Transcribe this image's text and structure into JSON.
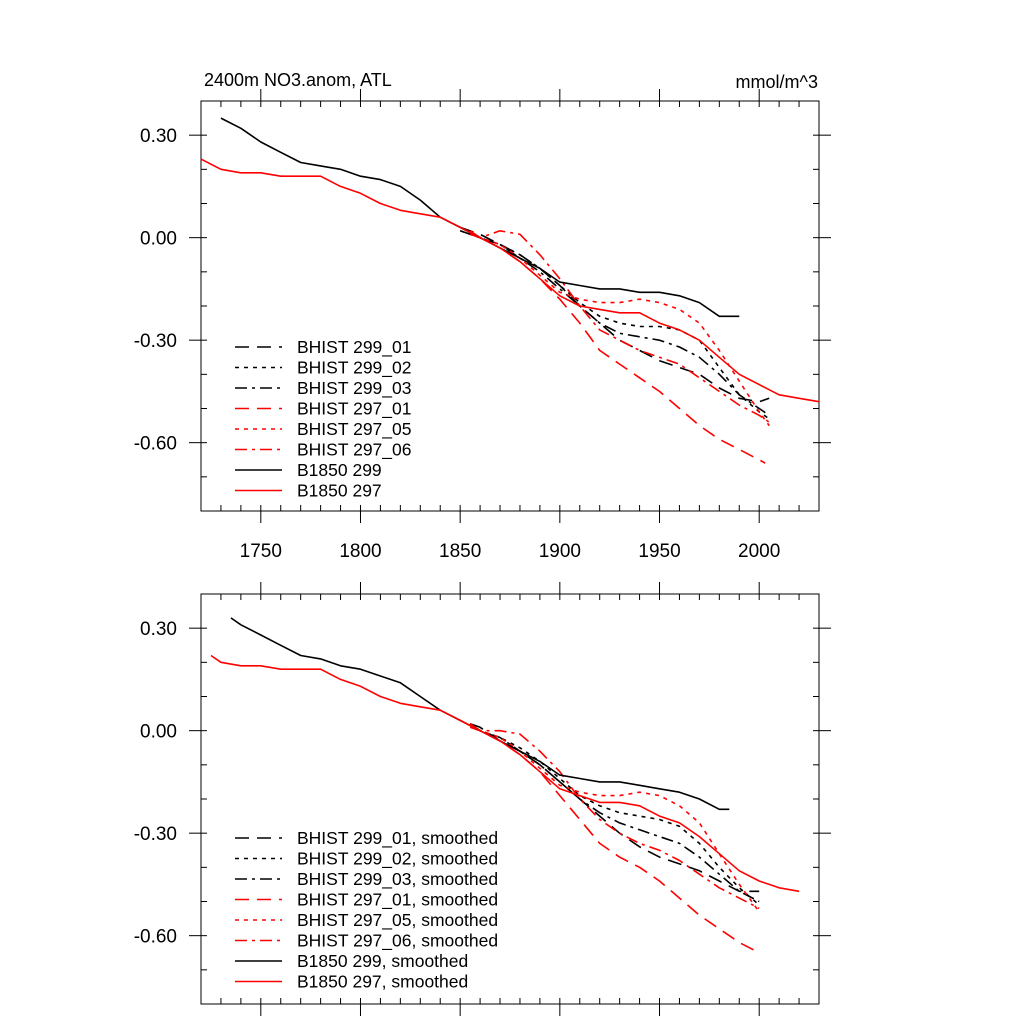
{
  "chart_data": [
    {
      "type": "line",
      "title": "2400m NO3.anom, ATL",
      "units": "mmol/m^3",
      "xlabel": "",
      "ylabel": "",
      "xlim": [
        1720,
        2030
      ],
      "ylim": [
        -0.8,
        0.4
      ],
      "xticks": [
        1750,
        1800,
        1850,
        1900,
        1950,
        2000
      ],
      "xtick_labels": [
        "1750",
        "1800",
        "1850",
        "1900",
        "1950",
        "2000"
      ],
      "yticks": [
        0.3,
        0.0,
        -0.3,
        -0.6
      ],
      "ytick_labels": [
        "0.30",
        "0.00",
        "-0.30",
        "-0.60"
      ],
      "grid": false,
      "legend_position": "bottom-left",
      "series": [
        {
          "name": "BHIST 299_01",
          "color": "#000000",
          "dash": "dash",
          "x": [
            1850,
            1860,
            1870,
            1880,
            1890,
            1900,
            1910,
            1920,
            1930,
            1940,
            1950,
            1960,
            1970,
            1980,
            1990,
            2000,
            2005
          ],
          "y": [
            0.03,
            0.01,
            -0.02,
            -0.05,
            -0.09,
            -0.14,
            -0.2,
            -0.25,
            -0.3,
            -0.33,
            -0.36,
            -0.38,
            -0.4,
            -0.44,
            -0.47,
            -0.48,
            -0.47
          ]
        },
        {
          "name": "BHIST 299_02",
          "color": "#000000",
          "dash": "dot",
          "x": [
            1850,
            1860,
            1870,
            1880,
            1890,
            1900,
            1910,
            1920,
            1930,
            1940,
            1950,
            1960,
            1970,
            1980,
            1990,
            2000,
            2005
          ],
          "y": [
            0.02,
            0.0,
            -0.02,
            -0.05,
            -0.09,
            -0.14,
            -0.19,
            -0.23,
            -0.25,
            -0.26,
            -0.26,
            -0.27,
            -0.3,
            -0.38,
            -0.46,
            -0.51,
            -0.53
          ]
        },
        {
          "name": "BHIST 299_03",
          "color": "#000000",
          "dash": "dashdot",
          "x": [
            1850,
            1860,
            1870,
            1880,
            1890,
            1900,
            1910,
            1920,
            1930,
            1940,
            1950,
            1960,
            1970,
            1980,
            1990,
            2000,
            2005
          ],
          "y": [
            0.02,
            0.0,
            -0.02,
            -0.06,
            -0.1,
            -0.15,
            -0.2,
            -0.25,
            -0.28,
            -0.29,
            -0.3,
            -0.32,
            -0.35,
            -0.4,
            -0.46,
            -0.5,
            -0.52
          ]
        },
        {
          "name": "BHIST 297_01",
          "color": "#ff0000",
          "dash": "dash",
          "x": [
            1855,
            1860,
            1870,
            1880,
            1890,
            1900,
            1910,
            1920,
            1930,
            1940,
            1950,
            1960,
            1970,
            1980,
            1990,
            2000,
            2003
          ],
          "y": [
            0.02,
            0.0,
            -0.03,
            -0.07,
            -0.12,
            -0.18,
            -0.25,
            -0.33,
            -0.37,
            -0.41,
            -0.45,
            -0.5,
            -0.55,
            -0.59,
            -0.62,
            -0.65,
            -0.66
          ]
        },
        {
          "name": "BHIST 297_05",
          "color": "#ff0000",
          "dash": "dot",
          "x": [
            1855,
            1860,
            1870,
            1880,
            1890,
            1900,
            1910,
            1920,
            1930,
            1940,
            1950,
            1960,
            1970,
            1980,
            1990,
            2000,
            2005
          ],
          "y": [
            0.02,
            0.0,
            -0.02,
            -0.06,
            -0.11,
            -0.16,
            -0.18,
            -0.19,
            -0.19,
            -0.18,
            -0.19,
            -0.21,
            -0.25,
            -0.33,
            -0.42,
            -0.51,
            -0.55
          ]
        },
        {
          "name": "BHIST 297_06",
          "color": "#ff0000",
          "dash": "dashdot",
          "x": [
            1855,
            1860,
            1870,
            1880,
            1890,
            1900,
            1910,
            1920,
            1930,
            1940,
            1950,
            1960,
            1970,
            1980,
            1990,
            2000,
            2005
          ],
          "y": [
            0.01,
            0.0,
            0.02,
            0.01,
            -0.05,
            -0.12,
            -0.2,
            -0.27,
            -0.3,
            -0.33,
            -0.35,
            -0.37,
            -0.41,
            -0.45,
            -0.49,
            -0.52,
            -0.54
          ]
        },
        {
          "name": "B1850 299",
          "color": "#000000",
          "dash": "solid",
          "x": [
            1730,
            1740,
            1750,
            1760,
            1770,
            1780,
            1790,
            1800,
            1810,
            1820,
            1830,
            1840,
            1850,
            1860,
            1870,
            1880,
            1890,
            1900,
            1910,
            1920,
            1930,
            1940,
            1950,
            1960,
            1970,
            1980,
            1990
          ],
          "y": [
            0.35,
            0.32,
            0.28,
            0.25,
            0.22,
            0.21,
            0.2,
            0.18,
            0.17,
            0.15,
            0.11,
            0.06,
            0.03,
            0.0,
            -0.03,
            -0.06,
            -0.09,
            -0.13,
            -0.14,
            -0.15,
            -0.15,
            -0.16,
            -0.16,
            -0.17,
            -0.19,
            -0.23,
            -0.23
          ]
        },
        {
          "name": "B1850 297",
          "color": "#ff0000",
          "dash": "solid",
          "x": [
            1720,
            1730,
            1740,
            1750,
            1760,
            1770,
            1780,
            1790,
            1800,
            1810,
            1820,
            1830,
            1840,
            1850,
            1860,
            1870,
            1880,
            1890,
            1900,
            1910,
            1920,
            1930,
            1940,
            1950,
            1960,
            1970,
            1980,
            1990,
            2000,
            2010,
            2020,
            2030
          ],
          "y": [
            0.23,
            0.2,
            0.19,
            0.19,
            0.18,
            0.18,
            0.18,
            0.15,
            0.13,
            0.1,
            0.08,
            0.07,
            0.06,
            0.03,
            0.0,
            -0.03,
            -0.07,
            -0.12,
            -0.17,
            -0.2,
            -0.21,
            -0.22,
            -0.22,
            -0.25,
            -0.27,
            -0.3,
            -0.35,
            -0.4,
            -0.43,
            -0.46,
            -0.47,
            -0.48
          ]
        }
      ]
    },
    {
      "type": "line",
      "title": "",
      "units": "",
      "xlabel": "",
      "ylabel": "",
      "xlim": [
        1720,
        2030
      ],
      "ylim": [
        -0.8,
        0.4
      ],
      "xticks": [
        1750,
        1800,
        1850,
        1900,
        1950,
        2000
      ],
      "yticks": [
        0.3,
        0.0,
        -0.3,
        -0.6
      ],
      "ytick_labels": [
        "0.30",
        "0.00",
        "-0.30",
        "-0.60"
      ],
      "grid": false,
      "legend_position": "bottom-left",
      "series": [
        {
          "name": "BHIST 299_01, smoothed",
          "color": "#000000",
          "dash": "dash",
          "x": [
            1855,
            1860,
            1870,
            1880,
            1890,
            1900,
            1910,
            1920,
            1930,
            1940,
            1950,
            1960,
            1970,
            1980,
            1990,
            2000
          ],
          "y": [
            0.02,
            0.01,
            -0.03,
            -0.06,
            -0.1,
            -0.15,
            -0.2,
            -0.25,
            -0.3,
            -0.34,
            -0.37,
            -0.39,
            -0.41,
            -0.44,
            -0.47,
            -0.47
          ]
        },
        {
          "name": "BHIST 299_02, smoothed",
          "color": "#000000",
          "dash": "dot",
          "x": [
            1855,
            1860,
            1870,
            1880,
            1890,
            1900,
            1910,
            1920,
            1930,
            1940,
            1950,
            1960,
            1970,
            1980,
            1990,
            2000
          ],
          "y": [
            0.02,
            0.0,
            -0.02,
            -0.05,
            -0.09,
            -0.14,
            -0.19,
            -0.22,
            -0.24,
            -0.25,
            -0.26,
            -0.28,
            -0.33,
            -0.4,
            -0.46,
            -0.51
          ]
        },
        {
          "name": "BHIST 299_03, smoothed",
          "color": "#000000",
          "dash": "dashdot",
          "x": [
            1855,
            1860,
            1870,
            1880,
            1890,
            1900,
            1910,
            1920,
            1930,
            1940,
            1950,
            1960,
            1970,
            1980,
            1990,
            2000
          ],
          "y": [
            0.02,
            0.0,
            -0.02,
            -0.06,
            -0.1,
            -0.15,
            -0.2,
            -0.24,
            -0.27,
            -0.29,
            -0.31,
            -0.33,
            -0.37,
            -0.42,
            -0.47,
            -0.5
          ]
        },
        {
          "name": "BHIST 297_01, smoothed",
          "color": "#ff0000",
          "dash": "dash",
          "x": [
            1855,
            1860,
            1870,
            1880,
            1890,
            1900,
            1910,
            1920,
            1930,
            1940,
            1950,
            1960,
            1970,
            1980,
            1990,
            2000
          ],
          "y": [
            0.02,
            0.0,
            -0.03,
            -0.07,
            -0.12,
            -0.19,
            -0.26,
            -0.33,
            -0.37,
            -0.4,
            -0.44,
            -0.49,
            -0.54,
            -0.58,
            -0.62,
            -0.65
          ]
        },
        {
          "name": "BHIST 297_05, smoothed",
          "color": "#ff0000",
          "dash": "dot",
          "x": [
            1855,
            1860,
            1870,
            1880,
            1890,
            1900,
            1910,
            1920,
            1930,
            1940,
            1950,
            1960,
            1970,
            1980,
            1990,
            2000
          ],
          "y": [
            0.02,
            0.0,
            -0.02,
            -0.06,
            -0.11,
            -0.16,
            -0.18,
            -0.19,
            -0.19,
            -0.18,
            -0.19,
            -0.22,
            -0.27,
            -0.36,
            -0.45,
            -0.53
          ]
        },
        {
          "name": "BHIST 297_06, smoothed",
          "color": "#ff0000",
          "dash": "dashdot",
          "x": [
            1855,
            1860,
            1870,
            1880,
            1890,
            1900,
            1910,
            1920,
            1930,
            1940,
            1950,
            1960,
            1970,
            1980,
            1990,
            2000
          ],
          "y": [
            0.01,
            0.0,
            0.0,
            -0.01,
            -0.06,
            -0.12,
            -0.2,
            -0.26,
            -0.3,
            -0.33,
            -0.35,
            -0.38,
            -0.42,
            -0.46,
            -0.49,
            -0.52
          ]
        },
        {
          "name": "B1850 299, smoothed",
          "color": "#000000",
          "dash": "solid",
          "x": [
            1735,
            1740,
            1750,
            1760,
            1770,
            1780,
            1790,
            1800,
            1810,
            1820,
            1830,
            1840,
            1850,
            1860,
            1870,
            1880,
            1890,
            1900,
            1910,
            1920,
            1930,
            1940,
            1950,
            1960,
            1970,
            1980,
            1985
          ],
          "y": [
            0.33,
            0.31,
            0.28,
            0.25,
            0.22,
            0.21,
            0.19,
            0.18,
            0.16,
            0.14,
            0.1,
            0.06,
            0.03,
            0.0,
            -0.03,
            -0.06,
            -0.09,
            -0.13,
            -0.14,
            -0.15,
            -0.15,
            -0.16,
            -0.17,
            -0.18,
            -0.2,
            -0.23,
            -0.23
          ]
        },
        {
          "name": "B1850 297, smoothed",
          "color": "#ff0000",
          "dash": "solid",
          "x": [
            1725,
            1730,
            1740,
            1750,
            1760,
            1770,
            1780,
            1790,
            1800,
            1810,
            1820,
            1830,
            1840,
            1850,
            1860,
            1870,
            1880,
            1890,
            1900,
            1910,
            1920,
            1930,
            1940,
            1950,
            1960,
            1970,
            1980,
            1990,
            2000,
            2010,
            2020
          ],
          "y": [
            0.22,
            0.2,
            0.19,
            0.19,
            0.18,
            0.18,
            0.18,
            0.15,
            0.13,
            0.1,
            0.08,
            0.07,
            0.06,
            0.03,
            0.0,
            -0.03,
            -0.07,
            -0.12,
            -0.17,
            -0.19,
            -0.21,
            -0.21,
            -0.22,
            -0.25,
            -0.27,
            -0.31,
            -0.36,
            -0.41,
            -0.44,
            -0.46,
            -0.47
          ]
        }
      ]
    }
  ]
}
